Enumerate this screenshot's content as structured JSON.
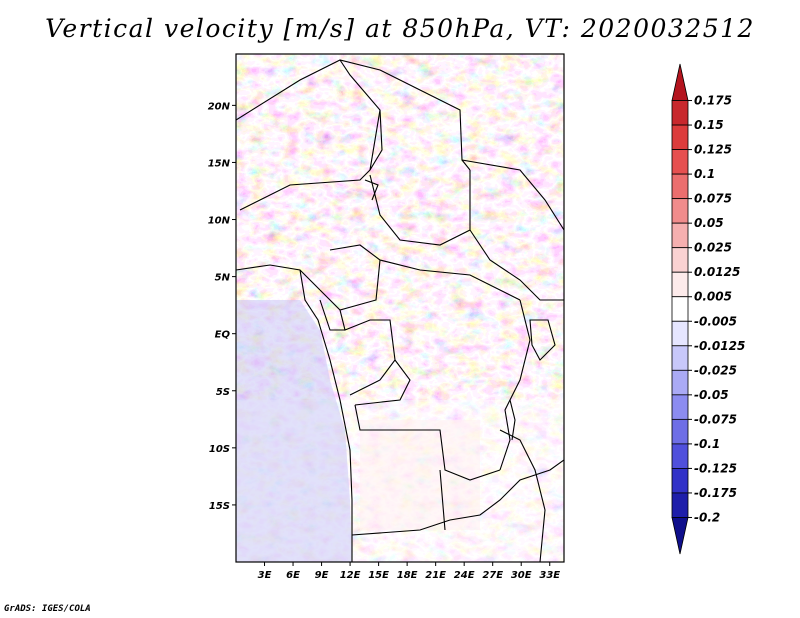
{
  "title": "Vertical velocity [m/s] at 850hPa, VT: 2020032512",
  "credit": "GrADS: IGES/COLA",
  "map": {
    "variable": "Vertical velocity",
    "units": "m/s",
    "level": "850hPa",
    "valid_time": "2020032512",
    "lon_range": [
      0,
      34.5
    ],
    "lat_range": [
      -20,
      24.5
    ],
    "lat_ticks": [
      {
        "value": 20,
        "label": "20N"
      },
      {
        "value": 15,
        "label": "15N"
      },
      {
        "value": 10,
        "label": "10N"
      },
      {
        "value": 5,
        "label": "5N"
      },
      {
        "value": 0,
        "label": "EQ"
      },
      {
        "value": -5,
        "label": "5S"
      },
      {
        "value": -10,
        "label": "10S"
      },
      {
        "value": -15,
        "label": "15S"
      }
    ],
    "lon_ticks": [
      {
        "value": 3,
        "label": "3E"
      },
      {
        "value": 6,
        "label": "6E"
      },
      {
        "value": 9,
        "label": "9E"
      },
      {
        "value": 12,
        "label": "12E"
      },
      {
        "value": 15,
        "label": "15E"
      },
      {
        "value": 18,
        "label": "18E"
      },
      {
        "value": 21,
        "label": "21E"
      },
      {
        "value": 24,
        "label": "24E"
      },
      {
        "value": 27,
        "label": "27E"
      },
      {
        "value": 30,
        "label": "30E"
      },
      {
        "value": 33,
        "label": "33E"
      }
    ]
  },
  "colorbar": {
    "labels": [
      "0.175",
      "0.15",
      "0.125",
      "0.1",
      "0.075",
      "0.05",
      "0.025",
      "0.0125",
      "0.005",
      "-0.005",
      "-0.0125",
      "-0.025",
      "-0.05",
      "-0.075",
      "-0.1",
      "-0.125",
      "-0.175",
      "-0.2"
    ],
    "colors": [
      "#b4141e",
      "#c8282d",
      "#dc3c3c",
      "#e65050",
      "#eb6e6e",
      "#f08c8c",
      "#f5afaf",
      "#fad2d2",
      "#fdebeb",
      "#ffffff",
      "#e6e6ff",
      "#c8c8fa",
      "#aaaaf5",
      "#8c8cf0",
      "#6e6ee6",
      "#5050dc",
      "#3232c8",
      "#1e1eaa",
      "#0f0f8c"
    ]
  }
}
